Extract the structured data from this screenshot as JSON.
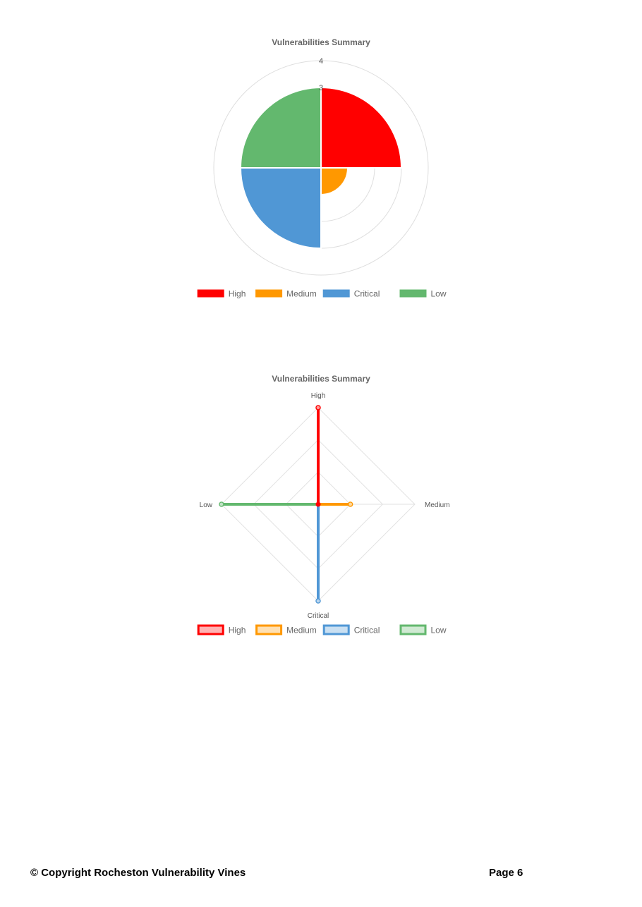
{
  "chart_data": [
    {
      "type": "polar-area",
      "title": "Vulnerabilities Summary",
      "categories": [
        "High",
        "Medium",
        "Critical",
        "Low"
      ],
      "values": [
        3,
        1,
        3,
        3
      ],
      "colors": [
        "#ff0000",
        "#ff9800",
        "#5097d5",
        "#63b86e"
      ],
      "r_tick_labels": [
        "4",
        "3"
      ],
      "rlim": [
        0,
        4
      ],
      "legend_position": "bottom",
      "grid": true
    },
    {
      "type": "radar",
      "title": "Vulnerabilities Summary",
      "axes": [
        "High",
        "Medium",
        "Critical",
        "Low"
      ],
      "series": [
        {
          "name": "High",
          "values": [
            3,
            0,
            0,
            0
          ]
        },
        {
          "name": "Medium",
          "values": [
            0,
            1,
            0,
            0
          ]
        },
        {
          "name": "Critical",
          "values": [
            0,
            0,
            3,
            0
          ]
        },
        {
          "name": "Low",
          "values": [
            0,
            0,
            0,
            3
          ]
        }
      ],
      "colors": [
        "#ff0000",
        "#ff9800",
        "#5097d5",
        "#63b86e"
      ],
      "rlim": [
        0,
        3
      ],
      "legend_position": "bottom",
      "grid": true
    }
  ],
  "footer": {
    "copyright": "© Copyright Rocheston Vulnerability Vines",
    "page": "Page 6"
  }
}
